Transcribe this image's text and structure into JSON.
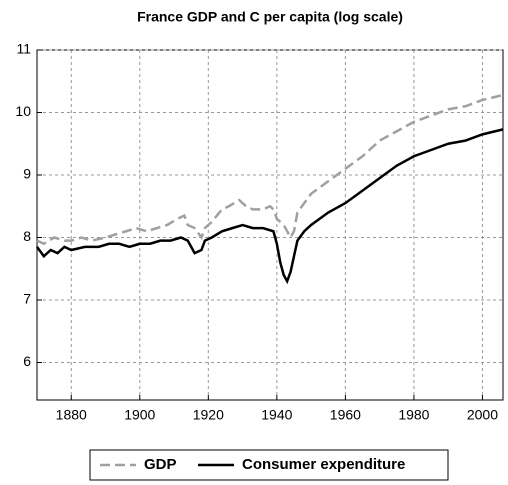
{
  "chart_data": {
    "type": "line",
    "title": "France GDP and C per capita (log scale)",
    "xlim": [
      1870,
      2006
    ],
    "xticks": [
      1880,
      1900,
      1920,
      1940,
      1960,
      1980,
      2000
    ],
    "ylim": [
      5.4,
      11
    ],
    "yticks": [
      6,
      7,
      8,
      9,
      10,
      11
    ],
    "grid": true,
    "legend": "bottom",
    "series": [
      {
        "name": "GDP",
        "color": "#a0a0a0",
        "dash": true,
        "x": [
          1870,
          1872,
          1875,
          1878,
          1880,
          1883,
          1886,
          1890,
          1893,
          1896,
          1899,
          1902,
          1905,
          1908,
          1911,
          1913,
          1914,
          1916,
          1918,
          1919,
          1921,
          1924,
          1926,
          1929,
          1931,
          1933,
          1936,
          1938,
          1939,
          1940,
          1942,
          1944,
          1945,
          1946,
          1948,
          1950,
          1955,
          1960,
          1965,
          1970,
          1975,
          1980,
          1985,
          1990,
          1995,
          2000,
          2006
        ],
        "values": [
          7.95,
          7.9,
          8.0,
          7.95,
          7.95,
          8.0,
          7.95,
          8.0,
          8.05,
          8.1,
          8.15,
          8.1,
          8.15,
          8.2,
          8.3,
          8.35,
          8.2,
          8.15,
          8.0,
          8.15,
          8.25,
          8.45,
          8.5,
          8.6,
          8.5,
          8.45,
          8.45,
          8.5,
          8.45,
          8.3,
          8.2,
          8.0,
          8.1,
          8.4,
          8.55,
          8.7,
          8.9,
          9.1,
          9.3,
          9.55,
          9.7,
          9.85,
          9.95,
          10.05,
          10.1,
          10.2,
          10.28
        ]
      },
      {
        "name": "Consumer expenditure",
        "color": "#000000",
        "dash": false,
        "x": [
          1870,
          1872,
          1874,
          1876,
          1878,
          1880,
          1884,
          1888,
          1891,
          1894,
          1897,
          1900,
          1903,
          1906,
          1909,
          1912,
          1914,
          1916,
          1918,
          1919,
          1921,
          1924,
          1927,
          1930,
          1933,
          1936,
          1939,
          1940,
          1941,
          1942,
          1943,
          1944,
          1945,
          1946,
          1948,
          1950,
          1955,
          1960,
          1965,
          1970,
          1975,
          1980,
          1985,
          1990,
          1995,
          2000,
          2006
        ],
        "values": [
          7.85,
          7.7,
          7.8,
          7.75,
          7.85,
          7.8,
          7.85,
          7.85,
          7.9,
          7.9,
          7.85,
          7.9,
          7.9,
          7.95,
          7.95,
          8.0,
          7.95,
          7.75,
          7.8,
          7.95,
          8.0,
          8.1,
          8.15,
          8.2,
          8.15,
          8.15,
          8.1,
          7.9,
          7.6,
          7.4,
          7.3,
          7.45,
          7.7,
          7.95,
          8.1,
          8.2,
          8.4,
          8.55,
          8.75,
          8.95,
          9.15,
          9.3,
          9.4,
          9.5,
          9.55,
          9.65,
          9.73
        ]
      }
    ]
  }
}
